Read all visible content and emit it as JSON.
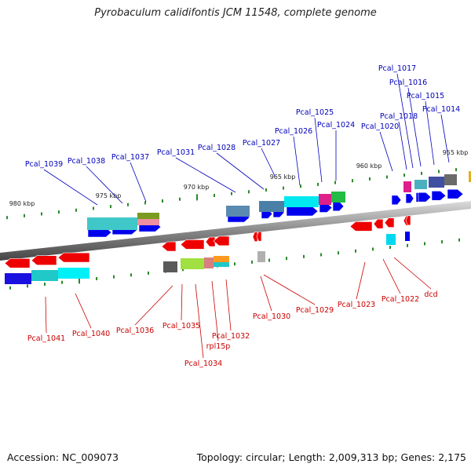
{
  "title": "Pyrobaculum calidifontis JCM 11548, complete genome",
  "footer": {
    "accession": "Accession: NC_009073",
    "topology": "Topology: circular; Length: 2,009,313 bp; Genes: 2,175"
  },
  "colors": {
    "forward_cds": "#0000ee",
    "reverse_cds": "#ee0000",
    "forward_label": "#0000bb",
    "reverse_label": "#cc0000",
    "backbone": "#888888",
    "ticks": "#2a8a2a"
  },
  "scale_labels": [
    {
      "label": "980 kbp",
      "kbp": 980
    },
    {
      "label": "975 kbp",
      "kbp": 975
    },
    {
      "label": "970 kbp",
      "kbp": 970
    },
    {
      "label": "965 kbp",
      "kbp": 965
    },
    {
      "label": "960 kbp",
      "kbp": 960
    },
    {
      "label": "955 kbp",
      "kbp": 955
    }
  ],
  "forward_genes": [
    "Pcal_1039",
    "Pcal_1038",
    "Pcal_1037",
    "Pcal_1031",
    "Pcal_1028",
    "Pcal_1027",
    "Pcal_1026",
    "Pcal_1025",
    "Pcal_1024",
    "Pcal_1020",
    "Pcal_1018",
    "Pcal_1017",
    "Pcal_1016",
    "Pcal_1015",
    "Pcal_1014"
  ],
  "reverse_genes": [
    "Pcal_1041",
    "Pcal_1040",
    "Pcal_1036",
    "Pcal_1035",
    "Pcal_1034",
    "rpl15p",
    "Pcal_1032",
    "Pcal_1030",
    "Pcal_1029",
    "Pcal_1023",
    "Pcal_1022",
    "dcd"
  ]
}
